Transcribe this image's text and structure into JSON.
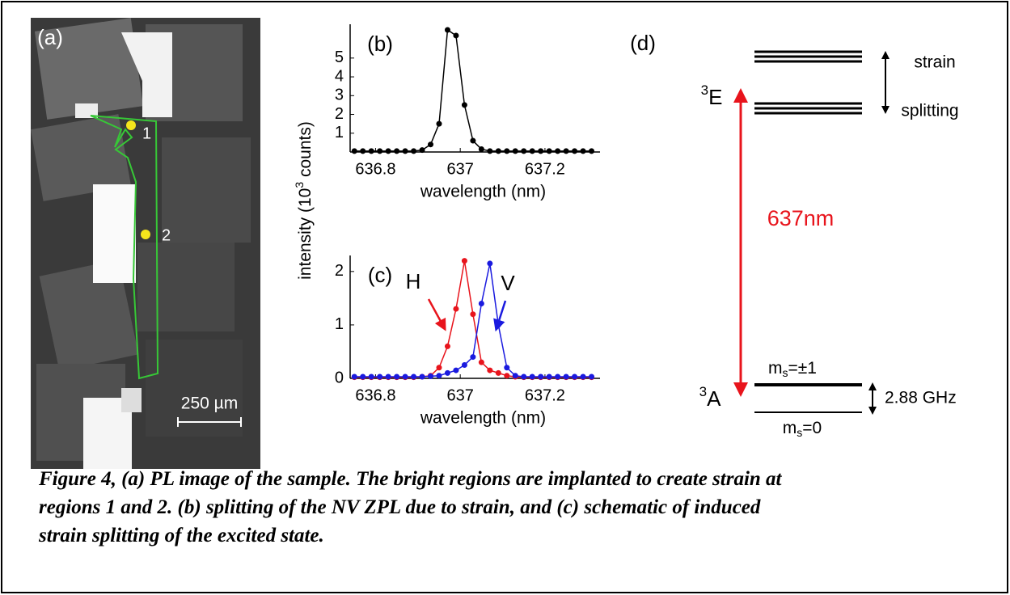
{
  "panel_a": {
    "label": "(a)",
    "point_labels": [
      "1",
      "2"
    ],
    "scale_bar": "250 µm"
  },
  "shared_ylabel": {
    "before": "intensity (10",
    "sup": "3",
    "after": " counts)"
  },
  "chart_data": [
    {
      "type": "line",
      "label": "(b)",
      "xlabel": "wavelength (nm)",
      "color": "#000000",
      "x": [
        636.75,
        636.77,
        636.79,
        636.81,
        636.83,
        636.85,
        636.87,
        636.89,
        636.91,
        636.93,
        636.95,
        636.97,
        636.99,
        637.01,
        637.03,
        637.05,
        637.07,
        637.09,
        637.11,
        637.13,
        637.15,
        637.17,
        637.19,
        637.21,
        637.23,
        637.25,
        637.27,
        637.29,
        637.31
      ],
      "values": [
        0.05,
        0.05,
        0.05,
        0.05,
        0.05,
        0.05,
        0.05,
        0.05,
        0.1,
        0.4,
        1.5,
        6.5,
        6.2,
        2.5,
        0.6,
        0.15,
        0.05,
        0.05,
        0.05,
        0.05,
        0.05,
        0.05,
        0.05,
        0.05,
        0.05,
        0.05,
        0.05,
        0.05,
        0.05
      ],
      "xlim": [
        636.74,
        637.33
      ],
      "xticks": [
        636.8,
        637,
        637.2
      ],
      "ylim": [
        0,
        6.8
      ],
      "yticks": [
        1,
        2,
        3,
        4,
        5
      ]
    },
    {
      "type": "line",
      "label": "(c)",
      "xlabel": "wavelength (nm)",
      "x": [
        636.75,
        636.77,
        636.79,
        636.81,
        636.83,
        636.85,
        636.87,
        636.89,
        636.91,
        636.93,
        636.95,
        636.97,
        636.99,
        637.01,
        637.03,
        637.05,
        637.07,
        637.09,
        637.11,
        637.13,
        637.15,
        637.17,
        637.19,
        637.21,
        637.23,
        637.25,
        637.27,
        637.29,
        637.31
      ],
      "series": [
        {
          "name": "H",
          "color": "#e8141c",
          "values": [
            0.02,
            0.02,
            0.02,
            0.02,
            0.02,
            0.02,
            0.02,
            0.02,
            0.03,
            0.05,
            0.2,
            0.6,
            1.3,
            2.2,
            1.2,
            0.3,
            0.15,
            0.1,
            0.05,
            0.03,
            0.02,
            0.02,
            0.02,
            0.02,
            0.02,
            0.02,
            0.02,
            0.02,
            0.02
          ]
        },
        {
          "name": "V",
          "color": "#1a1adf",
          "values": [
            0.03,
            0.03,
            0.03,
            0.03,
            0.03,
            0.03,
            0.03,
            0.03,
            0.03,
            0.04,
            0.05,
            0.1,
            0.15,
            0.25,
            0.4,
            1.4,
            2.15,
            1.0,
            0.2,
            0.05,
            0.03,
            0.03,
            0.03,
            0.03,
            0.03,
            0.03,
            0.03,
            0.03,
            0.03
          ]
        }
      ],
      "xlim": [
        636.74,
        637.33
      ],
      "xticks": [
        636.8,
        637,
        637.2
      ],
      "ylim": [
        0,
        2.3
      ],
      "yticks": [
        0,
        1,
        2
      ]
    }
  ],
  "panel_d": {
    "label": "(d)",
    "excited_state": {
      "sup": "3",
      "base": "E"
    },
    "ground_state": {
      "sup": "3",
      "base": "A"
    },
    "strain_label": [
      "strain",
      "splitting"
    ],
    "transition": "637nm",
    "ms1": {
      "base": "m",
      "sub": "s",
      "rest": "=±1"
    },
    "ms0": {
      "base": "m",
      "sub": "s",
      "rest": "=0"
    },
    "zero_field": "2.88 GHz"
  },
  "caption": [
    "Figure 4, (a) PL image of the sample. The bright regions are implanted to create strain at",
    "regions 1 and 2. (b) splitting of the NV ZPL due to strain, and (c) schematic of induced",
    "strain splitting of the excited state."
  ]
}
